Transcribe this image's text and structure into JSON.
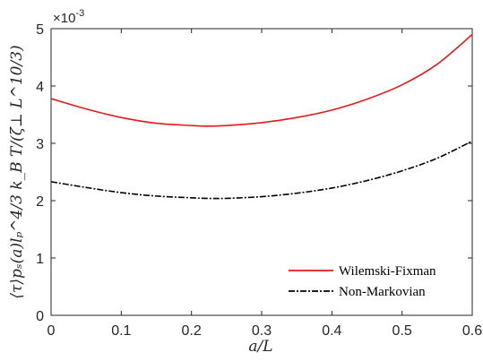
{
  "chart_data": {
    "type": "line",
    "xlabel": "a/L",
    "ylabel": "⟨τ⟩p_s(a) l_p^{4/3} k_B T / (ζ_⊥ L^{10/3})",
    "ylabel_display": "⟨τ⟩pₛ(a)lₚ^4/3 k_B T/(ζ⊥ L^10/3)",
    "xlim": [
      0,
      0.6
    ],
    "ylim": [
      0,
      5
    ],
    "y_multiplier": "×10^-3",
    "y_multiplier_text": "×10",
    "y_multiplier_exp": "-3",
    "grid": false,
    "legend_position": "bottom-right",
    "x_ticks": [
      "0",
      "0.1",
      "0.2",
      "0.3",
      "0.4",
      "0.5",
      "0.6"
    ],
    "y_ticks": [
      "0",
      "1",
      "2",
      "3",
      "4",
      "5"
    ],
    "x": [
      0,
      0.05,
      0.1,
      0.15,
      0.2,
      0.22,
      0.25,
      0.3,
      0.35,
      0.4,
      0.45,
      0.5,
      0.55,
      0.6
    ],
    "series": [
      {
        "name": "Wilemski-Fixman",
        "color": "#e31a1c",
        "style": "solid",
        "values": [
          3.78,
          3.6,
          3.45,
          3.35,
          3.31,
          3.3,
          3.31,
          3.36,
          3.45,
          3.58,
          3.77,
          4.02,
          4.38,
          4.9
        ]
      },
      {
        "name": "Non-Markovian",
        "color": "#000000",
        "style": "dashdot",
        "values": [
          2.33,
          2.23,
          2.14,
          2.08,
          2.05,
          2.04,
          2.04,
          2.07,
          2.13,
          2.22,
          2.35,
          2.52,
          2.74,
          3.04
        ]
      }
    ]
  }
}
